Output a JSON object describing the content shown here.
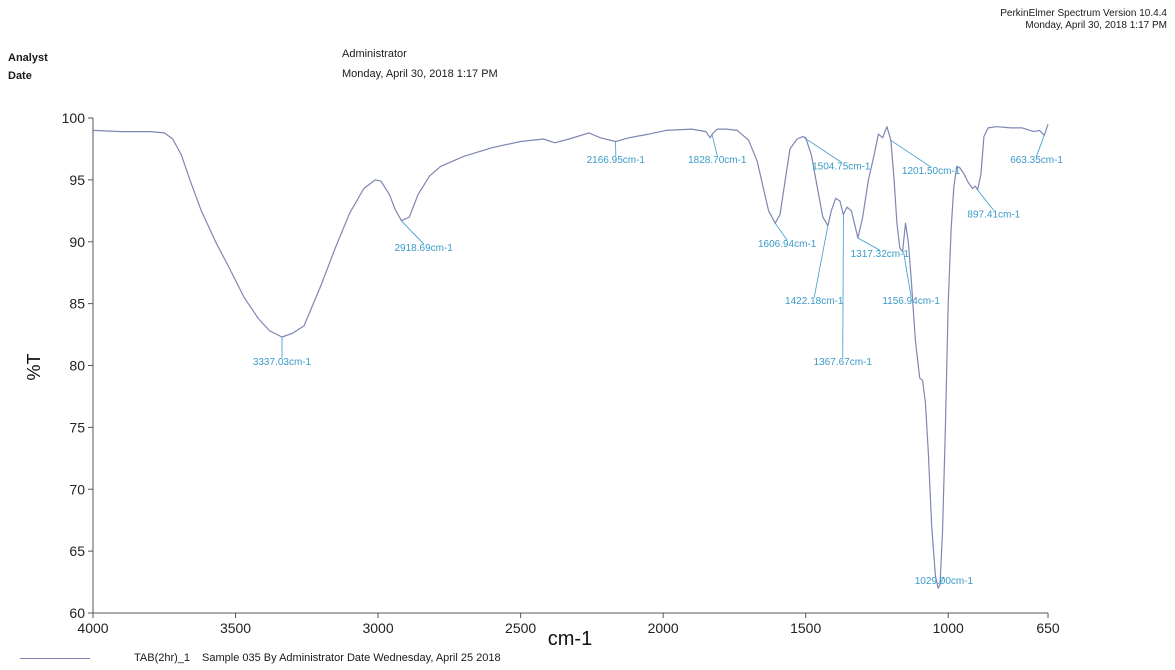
{
  "header": {
    "software_line1": "PerkinElmer Spectrum Version 10.4.4",
    "software_line2": "Monday, April 30, 2018 1:17 PM",
    "analyst_label": "Analyst",
    "analyst_value": "Administrator",
    "date_label": "Date",
    "date_value": "Monday, April 30, 2018 1:17 PM"
  },
  "legend": {
    "series_name": "TAB(2hr)_1",
    "description": "Sample 035 By Administrator Date Wednesday, April 25 2018"
  },
  "colors": {
    "line": "#7f86b3",
    "annotation": "#3a9ac8",
    "axis": "#555555"
  },
  "chart_data": {
    "type": "line",
    "title": "",
    "xlabel": "cm-1",
    "ylabel": "%T",
    "xlim": [
      4000,
      650
    ],
    "ylim": [
      60,
      100
    ],
    "x_reversed": true,
    "x_ticks": [
      4000,
      3500,
      3000,
      2500,
      2000,
      1500,
      1000,
      650
    ],
    "y_ticks": [
      60,
      65,
      70,
      75,
      80,
      85,
      90,
      95,
      100
    ],
    "grid": false,
    "series": [
      {
        "name": "TAB(2hr)_1",
        "points": [
          [
            4000,
            99
          ],
          [
            3900,
            98.9
          ],
          [
            3800,
            98.9
          ],
          [
            3750,
            98.8
          ],
          [
            3720,
            98.3
          ],
          [
            3690,
            97
          ],
          [
            3660,
            95
          ],
          [
            3620,
            92.5
          ],
          [
            3570,
            90
          ],
          [
            3520,
            87.8
          ],
          [
            3470,
            85.5
          ],
          [
            3420,
            83.8
          ],
          [
            3380,
            82.8
          ],
          [
            3337,
            82.3
          ],
          [
            3300,
            82.6
          ],
          [
            3260,
            83.2
          ],
          [
            3200,
            86.5
          ],
          [
            3150,
            89.5
          ],
          [
            3100,
            92.3
          ],
          [
            3050,
            94.3
          ],
          [
            3010,
            95
          ],
          [
            2990,
            94.9
          ],
          [
            2960,
            93.8
          ],
          [
            2940,
            92.6
          ],
          [
            2918,
            91.7
          ],
          [
            2890,
            92
          ],
          [
            2860,
            93.8
          ],
          [
            2820,
            95.3
          ],
          [
            2780,
            96.1
          ],
          [
            2700,
            96.9
          ],
          [
            2600,
            97.6
          ],
          [
            2500,
            98.1
          ],
          [
            2420,
            98.3
          ],
          [
            2380,
            98
          ],
          [
            2330,
            98.3
          ],
          [
            2260,
            98.8
          ],
          [
            2220,
            98.4
          ],
          [
            2166,
            98.1
          ],
          [
            2120,
            98.4
          ],
          [
            2050,
            98.7
          ],
          [
            1990,
            99
          ],
          [
            1900,
            99.1
          ],
          [
            1850,
            98.9
          ],
          [
            1835,
            98.4
          ],
          [
            1828,
            98.7
          ],
          [
            1810,
            99.1
          ],
          [
            1780,
            99.1
          ],
          [
            1740,
            99
          ],
          [
            1700,
            98.2
          ],
          [
            1670,
            96.5
          ],
          [
            1650,
            94.5
          ],
          [
            1630,
            92.5
          ],
          [
            1607,
            91.5
          ],
          [
            1590,
            92.2
          ],
          [
            1575,
            94.5
          ],
          [
            1555,
            97.5
          ],
          [
            1530,
            98.3
          ],
          [
            1510,
            98.5
          ],
          [
            1500,
            98.4
          ],
          [
            1480,
            97
          ],
          [
            1460,
            94.5
          ],
          [
            1440,
            92
          ],
          [
            1422,
            91.3
          ],
          [
            1410,
            92.5
          ],
          [
            1395,
            93.5
          ],
          [
            1380,
            93.3
          ],
          [
            1368,
            92.2
          ],
          [
            1355,
            92.8
          ],
          [
            1340,
            92.5
          ],
          [
            1330,
            91.6
          ],
          [
            1317,
            90.3
          ],
          [
            1300,
            92
          ],
          [
            1280,
            95
          ],
          [
            1260,
            97
          ],
          [
            1245,
            98.7
          ],
          [
            1230,
            98.4
          ],
          [
            1215,
            99.3
          ],
          [
            1201,
            98.2
          ],
          [
            1190,
            95
          ],
          [
            1180,
            91.5
          ],
          [
            1170,
            89.5
          ],
          [
            1160,
            89.2
          ],
          [
            1150,
            91.5
          ],
          [
            1140,
            90
          ],
          [
            1130,
            87
          ],
          [
            1115,
            82
          ],
          [
            1100,
            79
          ],
          [
            1090,
            78.8
          ],
          [
            1080,
            77
          ],
          [
            1070,
            73
          ],
          [
            1058,
            67
          ],
          [
            1045,
            63
          ],
          [
            1035,
            62
          ],
          [
            1029,
            62.3
          ],
          [
            1020,
            66.5
          ],
          [
            1010,
            75
          ],
          [
            1000,
            85
          ],
          [
            990,
            91
          ],
          [
            980,
            94.5
          ],
          [
            970,
            96.1
          ],
          [
            960,
            96
          ],
          [
            945,
            95.5
          ],
          [
            930,
            94.8
          ],
          [
            915,
            94.3
          ],
          [
            905,
            94.5
          ],
          [
            897,
            94.2
          ],
          [
            885,
            95.5
          ],
          [
            875,
            98.5
          ],
          [
            860,
            99.2
          ],
          [
            830,
            99.3
          ],
          [
            780,
            99.2
          ],
          [
            740,
            99.2
          ],
          [
            700,
            98.9
          ],
          [
            680,
            99
          ],
          [
            663,
            98.6
          ],
          [
            660,
            98.8
          ],
          [
            650,
            99.5
          ]
        ]
      }
    ],
    "annotations": [
      {
        "label": "3337.03cm-1",
        "x": 3337.03,
        "y": 82.3,
        "lx": 3337,
        "ly": 80.3
      },
      {
        "label": "2918.69cm-1",
        "x": 2918.69,
        "y": 91.7,
        "lx": 2840,
        "ly": 89.5
      },
      {
        "label": "2166.95cm-1",
        "x": 2166.95,
        "y": 98.1,
        "lx": 2166,
        "ly": 96.6
      },
      {
        "label": "1828.70cm-1",
        "x": 1828.7,
        "y": 98.7,
        "lx": 1810,
        "ly": 96.6
      },
      {
        "label": "1504.75cm-1",
        "x": 1504.75,
        "y": 98.4,
        "lx": 1375,
        "ly": 96.1
      },
      {
        "label": "1201.50cm-1",
        "x": 1201.5,
        "y": 98.2,
        "lx": 1060,
        "ly": 95.7
      },
      {
        "label": "663.35cm-1",
        "x": 663.35,
        "y": 98.6,
        "lx": 690,
        "ly": 96.6
      },
      {
        "label": "1606.94cm-1",
        "x": 1606.94,
        "y": 91.5,
        "lx": 1565,
        "ly": 89.8
      },
      {
        "label": "1317.32cm-1",
        "x": 1317.32,
        "y": 90.3,
        "lx": 1240,
        "ly": 89.0
      },
      {
        "label": "897.41cm-1",
        "x": 897.41,
        "y": 94.2,
        "lx": 840,
        "ly": 92.2
      },
      {
        "label": "1422.18cm-1",
        "x": 1422.18,
        "y": 91.3,
        "lx": 1470,
        "ly": 85.2
      },
      {
        "label": "1156.94cm-1",
        "x": 1156.94,
        "y": 89.2,
        "lx": 1130,
        "ly": 85.2
      },
      {
        "label": "1367.67cm-1",
        "x": 1367.67,
        "y": 92.2,
        "lx": 1370,
        "ly": 80.3
      },
      {
        "label": "1029.00cm-1",
        "x": 1029.0,
        "y": 62.3,
        "lx": 1015,
        "ly": 62.6
      }
    ]
  }
}
